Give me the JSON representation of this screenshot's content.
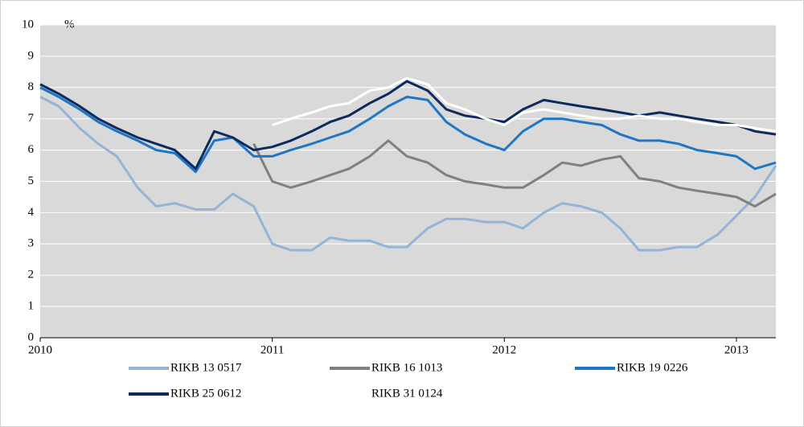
{
  "chart_data": {
    "type": "line",
    "y_unit": "%",
    "x": [
      2010.0,
      2010.08,
      2010.17,
      2010.25,
      2010.33,
      2010.42,
      2010.5,
      2010.58,
      2010.67,
      2010.75,
      2010.83,
      2010.92,
      2011.0,
      2011.08,
      2011.17,
      2011.25,
      2011.33,
      2011.42,
      2011.5,
      2011.58,
      2011.67,
      2011.75,
      2011.83,
      2011.92,
      2012.0,
      2012.08,
      2012.17,
      2012.25,
      2012.33,
      2012.42,
      2012.5,
      2012.58,
      2012.67,
      2012.75,
      2012.83,
      2012.92,
      2013.0,
      2013.08,
      2013.17
    ],
    "series": [
      {
        "name": "RIKB 13 0517",
        "color": "#95b3d7",
        "values": [
          7.7,
          7.4,
          6.7,
          6.2,
          5.8,
          4.8,
          4.2,
          4.3,
          4.1,
          4.1,
          4.6,
          4.2,
          3.0,
          2.8,
          2.8,
          3.2,
          3.1,
          3.1,
          2.9,
          2.9,
          3.5,
          3.8,
          3.8,
          3.7,
          3.7,
          3.5,
          4.0,
          4.3,
          4.2,
          4.0,
          3.5,
          2.8,
          2.8,
          2.9,
          2.9,
          3.3,
          3.9,
          4.5,
          5.5
        ]
      },
      {
        "name": "RIKB 16 1013",
        "color": "#808080",
        "values": [
          null,
          null,
          null,
          null,
          null,
          null,
          null,
          null,
          null,
          null,
          null,
          6.2,
          5.0,
          4.8,
          5.0,
          5.2,
          5.4,
          5.8,
          6.3,
          5.8,
          5.6,
          5.2,
          5.0,
          4.9,
          4.8,
          4.8,
          5.2,
          5.6,
          5.5,
          5.7,
          5.8,
          5.1,
          5.0,
          4.8,
          4.7,
          4.6,
          4.5,
          4.2,
          4.6
        ]
      },
      {
        "name": "RIKB 19 0226",
        "color": "#1f77c4",
        "values": [
          8.0,
          7.7,
          7.3,
          6.9,
          6.6,
          6.3,
          6.0,
          5.9,
          5.3,
          6.3,
          6.4,
          5.8,
          5.8,
          6.0,
          6.2,
          6.4,
          6.6,
          7.0,
          7.4,
          7.7,
          7.6,
          6.9,
          6.5,
          6.2,
          6.0,
          6.6,
          7.0,
          7.0,
          6.9,
          6.8,
          6.5,
          6.3,
          6.3,
          6.2,
          6.0,
          5.9,
          5.8,
          5.4,
          5.6
        ]
      },
      {
        "name": "RIKB 25 0612",
        "color": "#0d2a5e",
        "values": [
          8.1,
          7.8,
          7.4,
          7.0,
          6.7,
          6.4,
          6.2,
          6.0,
          5.4,
          6.6,
          6.4,
          6.0,
          6.1,
          6.3,
          6.6,
          6.9,
          7.1,
          7.5,
          7.8,
          8.2,
          7.9,
          7.3,
          7.1,
          7.0,
          6.9,
          7.3,
          7.6,
          7.5,
          7.4,
          7.3,
          7.2,
          7.1,
          7.2,
          7.1,
          7.0,
          6.9,
          6.8,
          6.6,
          6.5
        ]
      },
      {
        "name": "RIKB 31 0124",
        "color": "#ffffff",
        "values": [
          null,
          null,
          null,
          null,
          null,
          null,
          null,
          null,
          null,
          null,
          null,
          null,
          6.8,
          7.0,
          7.2,
          7.4,
          7.5,
          7.9,
          8.0,
          8.3,
          8.1,
          7.5,
          7.3,
          7.0,
          6.8,
          7.2,
          7.3,
          7.2,
          7.1,
          7.0,
          7.0,
          7.1,
          7.0,
          7.0,
          6.9,
          6.8,
          6.8,
          6.7,
          6.6
        ]
      }
    ],
    "xlim": [
      2010,
      2013.17
    ],
    "xticks": [
      2010,
      2011,
      2012,
      2013
    ],
    "ylim": [
      0,
      10
    ],
    "yticks": [
      0,
      1,
      2,
      3,
      4,
      5,
      6,
      7,
      8,
      9,
      10
    ],
    "grid": true,
    "legend": "bottom"
  }
}
